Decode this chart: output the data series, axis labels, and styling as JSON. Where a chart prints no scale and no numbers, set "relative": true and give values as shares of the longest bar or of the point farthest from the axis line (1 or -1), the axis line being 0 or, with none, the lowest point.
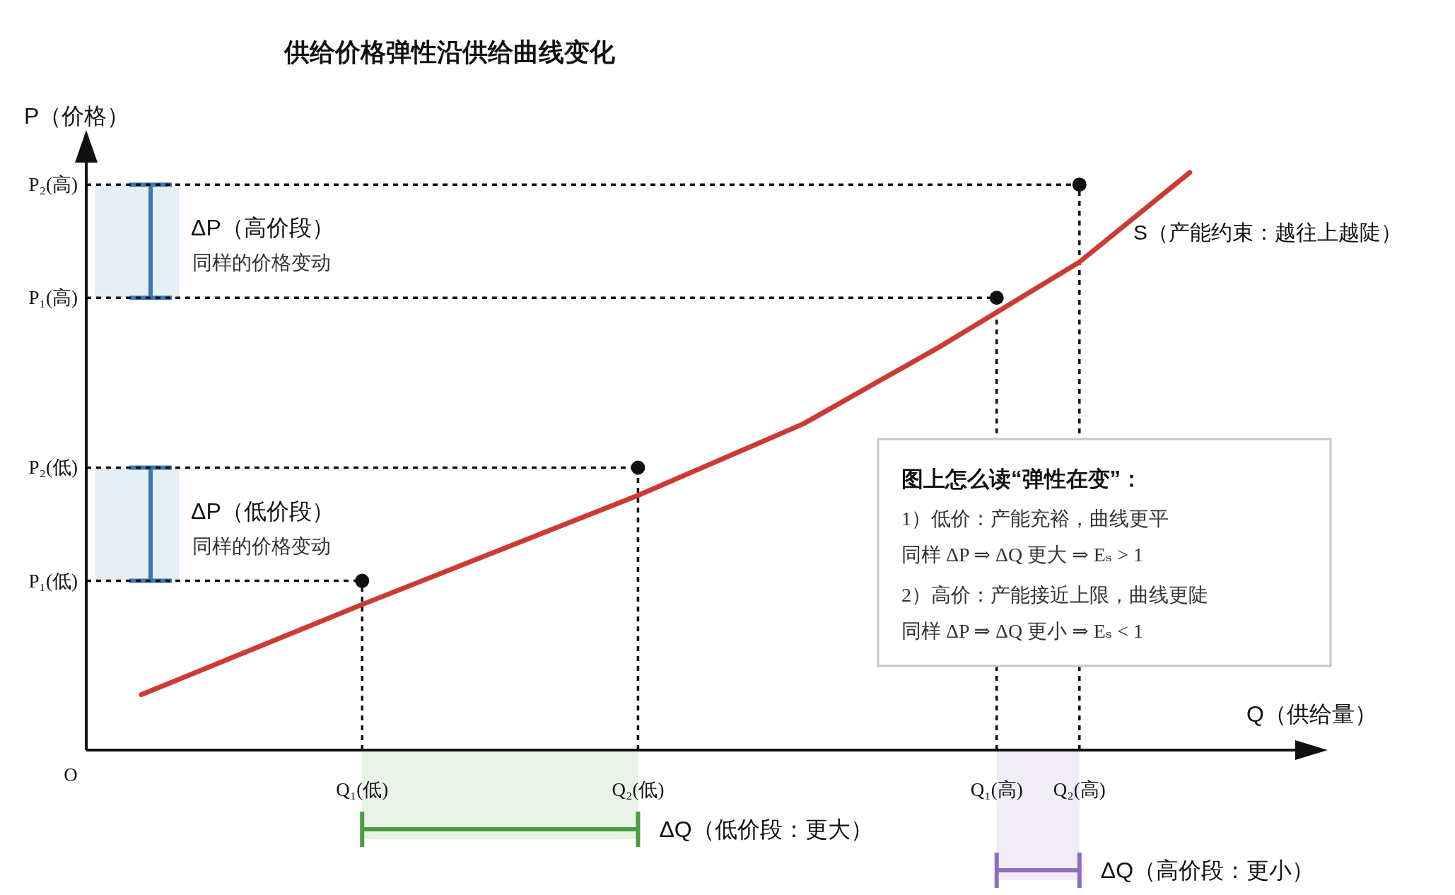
{
  "chart_data": {
    "type": "line",
    "title": "供给价格弹性沿供给曲线变化",
    "xlabel": "Q（供给量）",
    "ylabel": "P（价格）",
    "relative": true,
    "categories": [
      null,
      null,
      null,
      null,
      null,
      null,
      null,
      null,
      null,
      null,
      "Q₁(低)",
      null,
      null,
      null,
      null,
      null,
      null,
      null,
      null,
      null,
      "Q₂(低)",
      null,
      null,
      null,
      null,
      null,
      null,
      null,
      null,
      null,
      null,
      null,
      null,
      "Q₁(高)",
      null,
      null,
      "Q₂(高)",
      null,
      null,
      null,
      null
    ],
    "series": [
      {
        "name": "S（产能约束：越往上越陡）",
        "color": "#cc3b33",
        "values": [
          null,
          null,
          0.096,
          null,
          null,
          null,
          null,
          null,
          null,
          null,
          0.252,
          null,
          null,
          null,
          null,
          null,
          null,
          null,
          null,
          null,
          0.441,
          null,
          null,
          null,
          null,
          null,
          0.565,
          null,
          null,
          null,
          null,
          0.7,
          null,
          0.758,
          null,
          null,
          0.845,
          null,
          null,
          null,
          1
        ]
      },
      {
        "type": "scatter",
        "color": "#111111",
        "values": [
          null,
          null,
          null,
          null,
          null,
          null,
          null,
          null,
          null,
          null,
          0.293,
          null,
          null,
          null,
          null,
          null,
          null,
          null,
          null,
          null,
          0.489,
          null,
          null,
          null,
          null,
          null,
          null,
          null,
          null,
          null,
          null,
          null,
          null,
          0.783,
          null,
          null,
          0.979,
          null,
          null,
          null,
          null
        ]
      }
    ],
    "bands": [
      {
        "axis": "y",
        "from": 0.783,
        "to": 0.979,
        "label": "ΔP（高价段）",
        "color": "#3a78b5"
      },
      {
        "axis": "y",
        "from": 0.293,
        "to": 0.489,
        "label": "ΔP（低价段）",
        "color": "#3a78b5"
      }
    ],
    "annotations": [
      "图上怎么读“弹性在变”：",
      "1）低价：产能充裕，曲线更平",
      "同样 ΔP ⇒ ΔQ 更大 ⇒ Eₛ > 1",
      "2）高价：产能接近上限，曲线更陡",
      "同样 ΔP ⇒ ΔQ 更小 ⇒ Eₛ < 1",
      "同样的价格变动",
      "同样的价格变动",
      "O",
      "P₂(高)",
      "P₁(高)",
      "P₂(低)",
      "P₁(低)",
      "ΔQ（低价段：更大）",
      "ΔQ（高价段：更小）"
    ]
  }
}
